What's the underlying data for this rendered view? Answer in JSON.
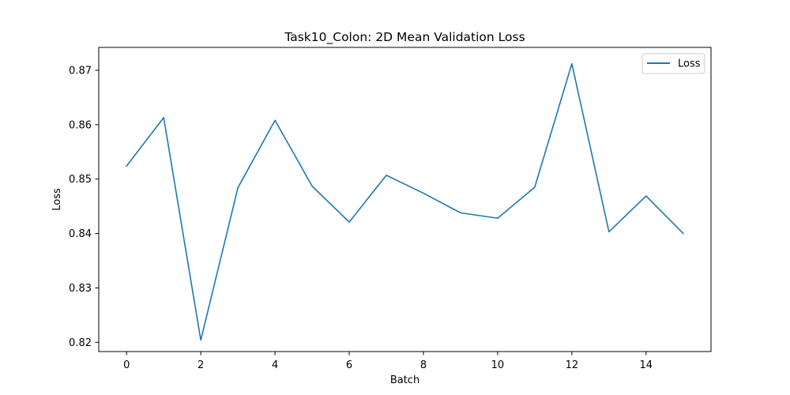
{
  "chart_data": {
    "type": "line",
    "title": "Task10_Colon: 2D Mean Validation Loss",
    "xlabel": "Batch",
    "ylabel": "Loss",
    "xlim": [
      -0.75,
      15.75
    ],
    "ylim": [
      0.8183,
      0.8742
    ],
    "xticks": [
      0,
      2,
      4,
      6,
      8,
      10,
      12,
      14
    ],
    "xtick_labels": [
      "0",
      "2",
      "4",
      "6",
      "8",
      "10",
      "12",
      "14"
    ],
    "yticks": [
      0.82,
      0.83,
      0.84,
      0.85,
      0.86,
      0.87
    ],
    "ytick_labels": [
      "0.82",
      "0.83",
      "0.84",
      "0.85",
      "0.86",
      "0.87"
    ],
    "grid": false,
    "legend": {
      "position": "upper right",
      "entries": [
        "Loss"
      ]
    },
    "x": [
      0,
      1,
      2,
      3,
      4,
      5,
      6,
      7,
      8,
      9,
      10,
      11,
      12,
      13,
      14,
      15
    ],
    "series": [
      {
        "name": "Loss",
        "color": "#1f77b4",
        "values": [
          0.8524,
          0.8613,
          0.8204,
          0.8484,
          0.8608,
          0.8487,
          0.8421,
          0.8507,
          0.8474,
          0.8438,
          0.8428,
          0.8485,
          0.8712,
          0.8403,
          0.8469,
          0.84
        ]
      }
    ]
  }
}
